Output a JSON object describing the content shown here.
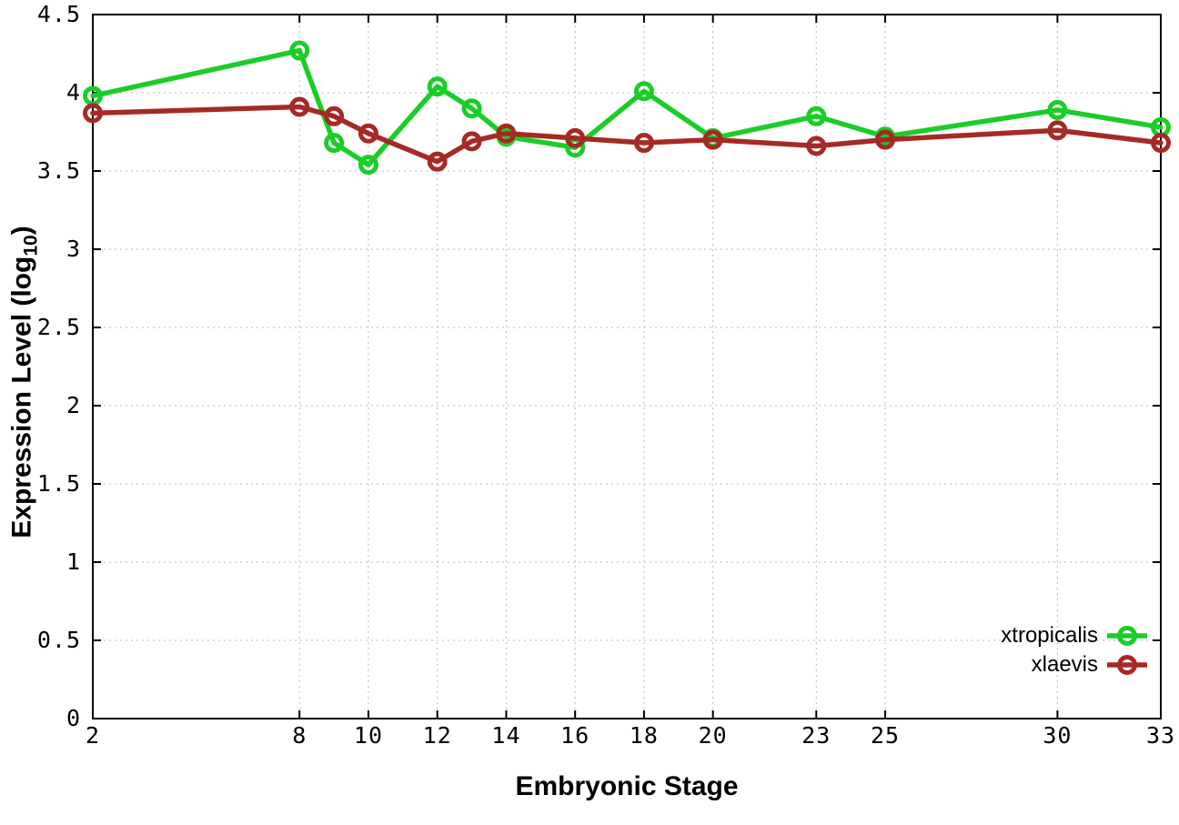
{
  "chart_data": {
    "type": "line",
    "title": "",
    "xlabel": "Embryonic Stage",
    "ylabel_prefix": "Expression Level (log",
    "ylabel_subscript": "10",
    "ylabel_suffix": ")",
    "xlim": [
      2,
      33
    ],
    "ylim": [
      0,
      4.5
    ],
    "grid": "dotted",
    "legend_position": "inside bottom-right",
    "background_color": "#ffffff",
    "axis_color": "#000000",
    "grid_color": "#b8b8b8",
    "x_ticks": [
      {
        "value": 2,
        "label": "2"
      },
      {
        "value": 8,
        "label": "8"
      },
      {
        "value": 10,
        "label": "10"
      },
      {
        "value": 12,
        "label": "12"
      },
      {
        "value": 14,
        "label": "14"
      },
      {
        "value": 16,
        "label": "16"
      },
      {
        "value": 18,
        "label": "18"
      },
      {
        "value": 20,
        "label": "20"
      },
      {
        "value": 23,
        "label": "23"
      },
      {
        "value": 25,
        "label": "25"
      },
      {
        "value": 30,
        "label": "30"
      },
      {
        "value": 33,
        "label": "33"
      }
    ],
    "y_ticks": [
      {
        "value": 0,
        "label": "0"
      },
      {
        "value": 0.5,
        "label": "0.5"
      },
      {
        "value": 1,
        "label": "1"
      },
      {
        "value": 1.5,
        "label": "1.5"
      },
      {
        "value": 2,
        "label": "2"
      },
      {
        "value": 2.5,
        "label": "2.5"
      },
      {
        "value": 3,
        "label": "3"
      },
      {
        "value": 3.5,
        "label": "3.5"
      },
      {
        "value": 4,
        "label": "4"
      },
      {
        "value": 4.5,
        "label": "4.5"
      }
    ],
    "x": [
      2,
      8,
      9,
      10,
      12,
      13,
      14,
      16,
      18,
      20,
      23,
      25,
      30,
      33
    ],
    "series": [
      {
        "name": "xtropicalis",
        "color": "#1bcd27",
        "marker": "open-circle",
        "values": [
          3.98,
          4.27,
          3.68,
          3.54,
          4.04,
          3.9,
          3.72,
          3.65,
          4.01,
          3.71,
          3.85,
          3.72,
          3.89,
          3.78
        ]
      },
      {
        "name": "xlaevis",
        "color": "#a52a24",
        "marker": "open-circle",
        "values": [
          3.87,
          3.91,
          3.85,
          3.74,
          3.56,
          3.69,
          3.74,
          3.71,
          3.68,
          3.7,
          3.66,
          3.7,
          3.76,
          3.68
        ]
      }
    ]
  }
}
